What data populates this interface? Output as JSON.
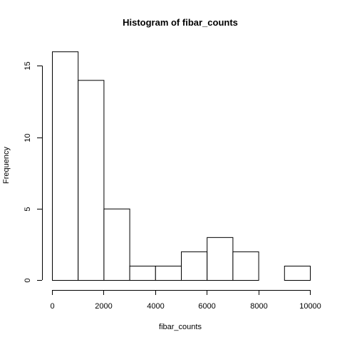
{
  "chart_data": {
    "type": "bar",
    "title": "Histogram of fibar_counts",
    "xlabel": "fibar_counts",
    "ylabel": "Frequency",
    "bins": [
      {
        "start": 0,
        "end": 1000,
        "count": 16
      },
      {
        "start": 1000,
        "end": 2000,
        "count": 14
      },
      {
        "start": 2000,
        "end": 3000,
        "count": 5
      },
      {
        "start": 3000,
        "end": 4000,
        "count": 1
      },
      {
        "start": 4000,
        "end": 5000,
        "count": 1
      },
      {
        "start": 5000,
        "end": 6000,
        "count": 2
      },
      {
        "start": 6000,
        "end": 7000,
        "count": 3
      },
      {
        "start": 7000,
        "end": 8000,
        "count": 2
      },
      {
        "start": 8000,
        "end": 9000,
        "count": 0
      },
      {
        "start": 9000,
        "end": 10000,
        "count": 1
      }
    ],
    "x_ticks": [
      "0",
      "2000",
      "4000",
      "6000",
      "8000",
      "10000"
    ],
    "x_tick_values": [
      0,
      2000,
      4000,
      6000,
      8000,
      10000
    ],
    "y_ticks": [
      "0",
      "5",
      "10",
      "15"
    ],
    "y_tick_values": [
      0,
      5,
      10,
      15
    ],
    "xlim": [
      0,
      10000
    ],
    "ylim": [
      0,
      16
    ],
    "grid": false
  }
}
